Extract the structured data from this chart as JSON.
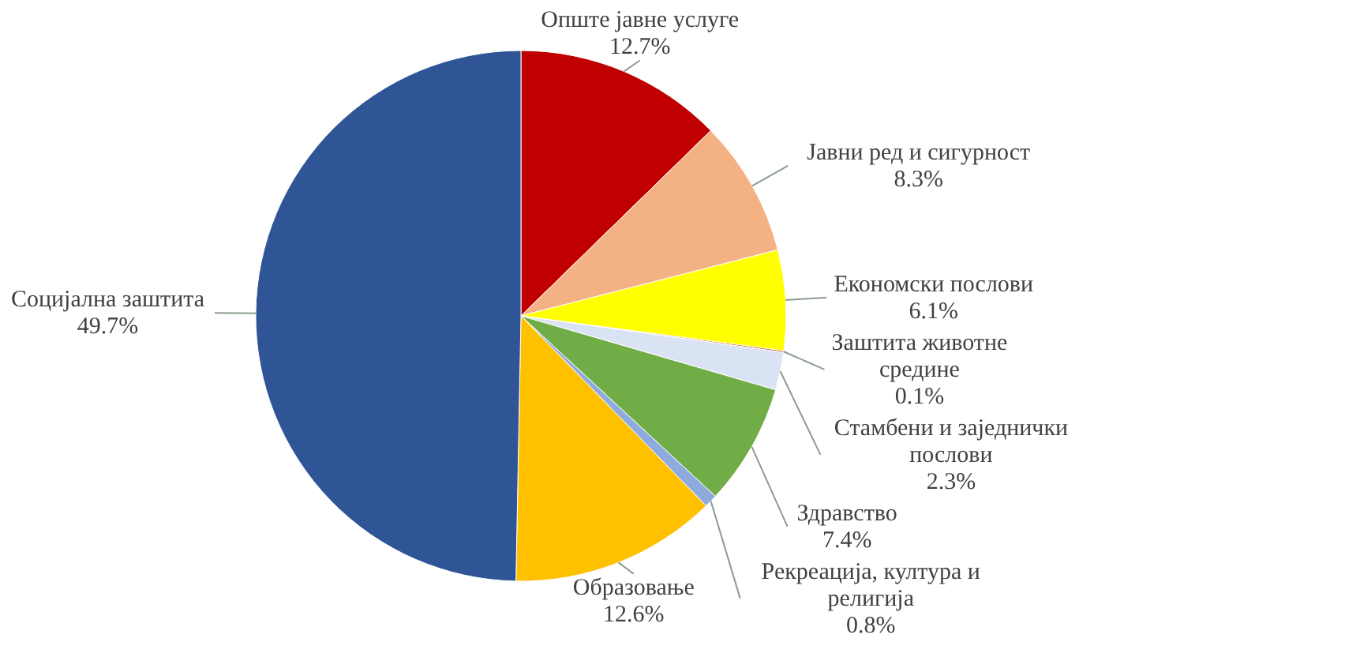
{
  "chart_data": {
    "type": "pie",
    "categories": [
      "Опште јавне услуге",
      "Јавни ред и сигурност",
      "Економски послови",
      "Заштита животне средине",
      "Стамбени и заједнички послови",
      "Здравство",
      "Рекреација, култура и религија",
      "Образовање",
      "Социјална заштита"
    ],
    "values": [
      12.7,
      8.3,
      6.1,
      0.1,
      2.3,
      7.4,
      0.8,
      12.6,
      49.7
    ],
    "value_labels": [
      "12.7%",
      "8.3%",
      "6.1%",
      "0.1%",
      "2.3%",
      "7.4%",
      "0.8%",
      "12.6%",
      "49.7%"
    ],
    "colors": [
      "#c00000",
      "#f4b183",
      "#ffff00",
      "#c55a11",
      "#dae3f3",
      "#70ad47",
      "#8faadc",
      "#ffc000",
      "#2f5597"
    ]
  }
}
